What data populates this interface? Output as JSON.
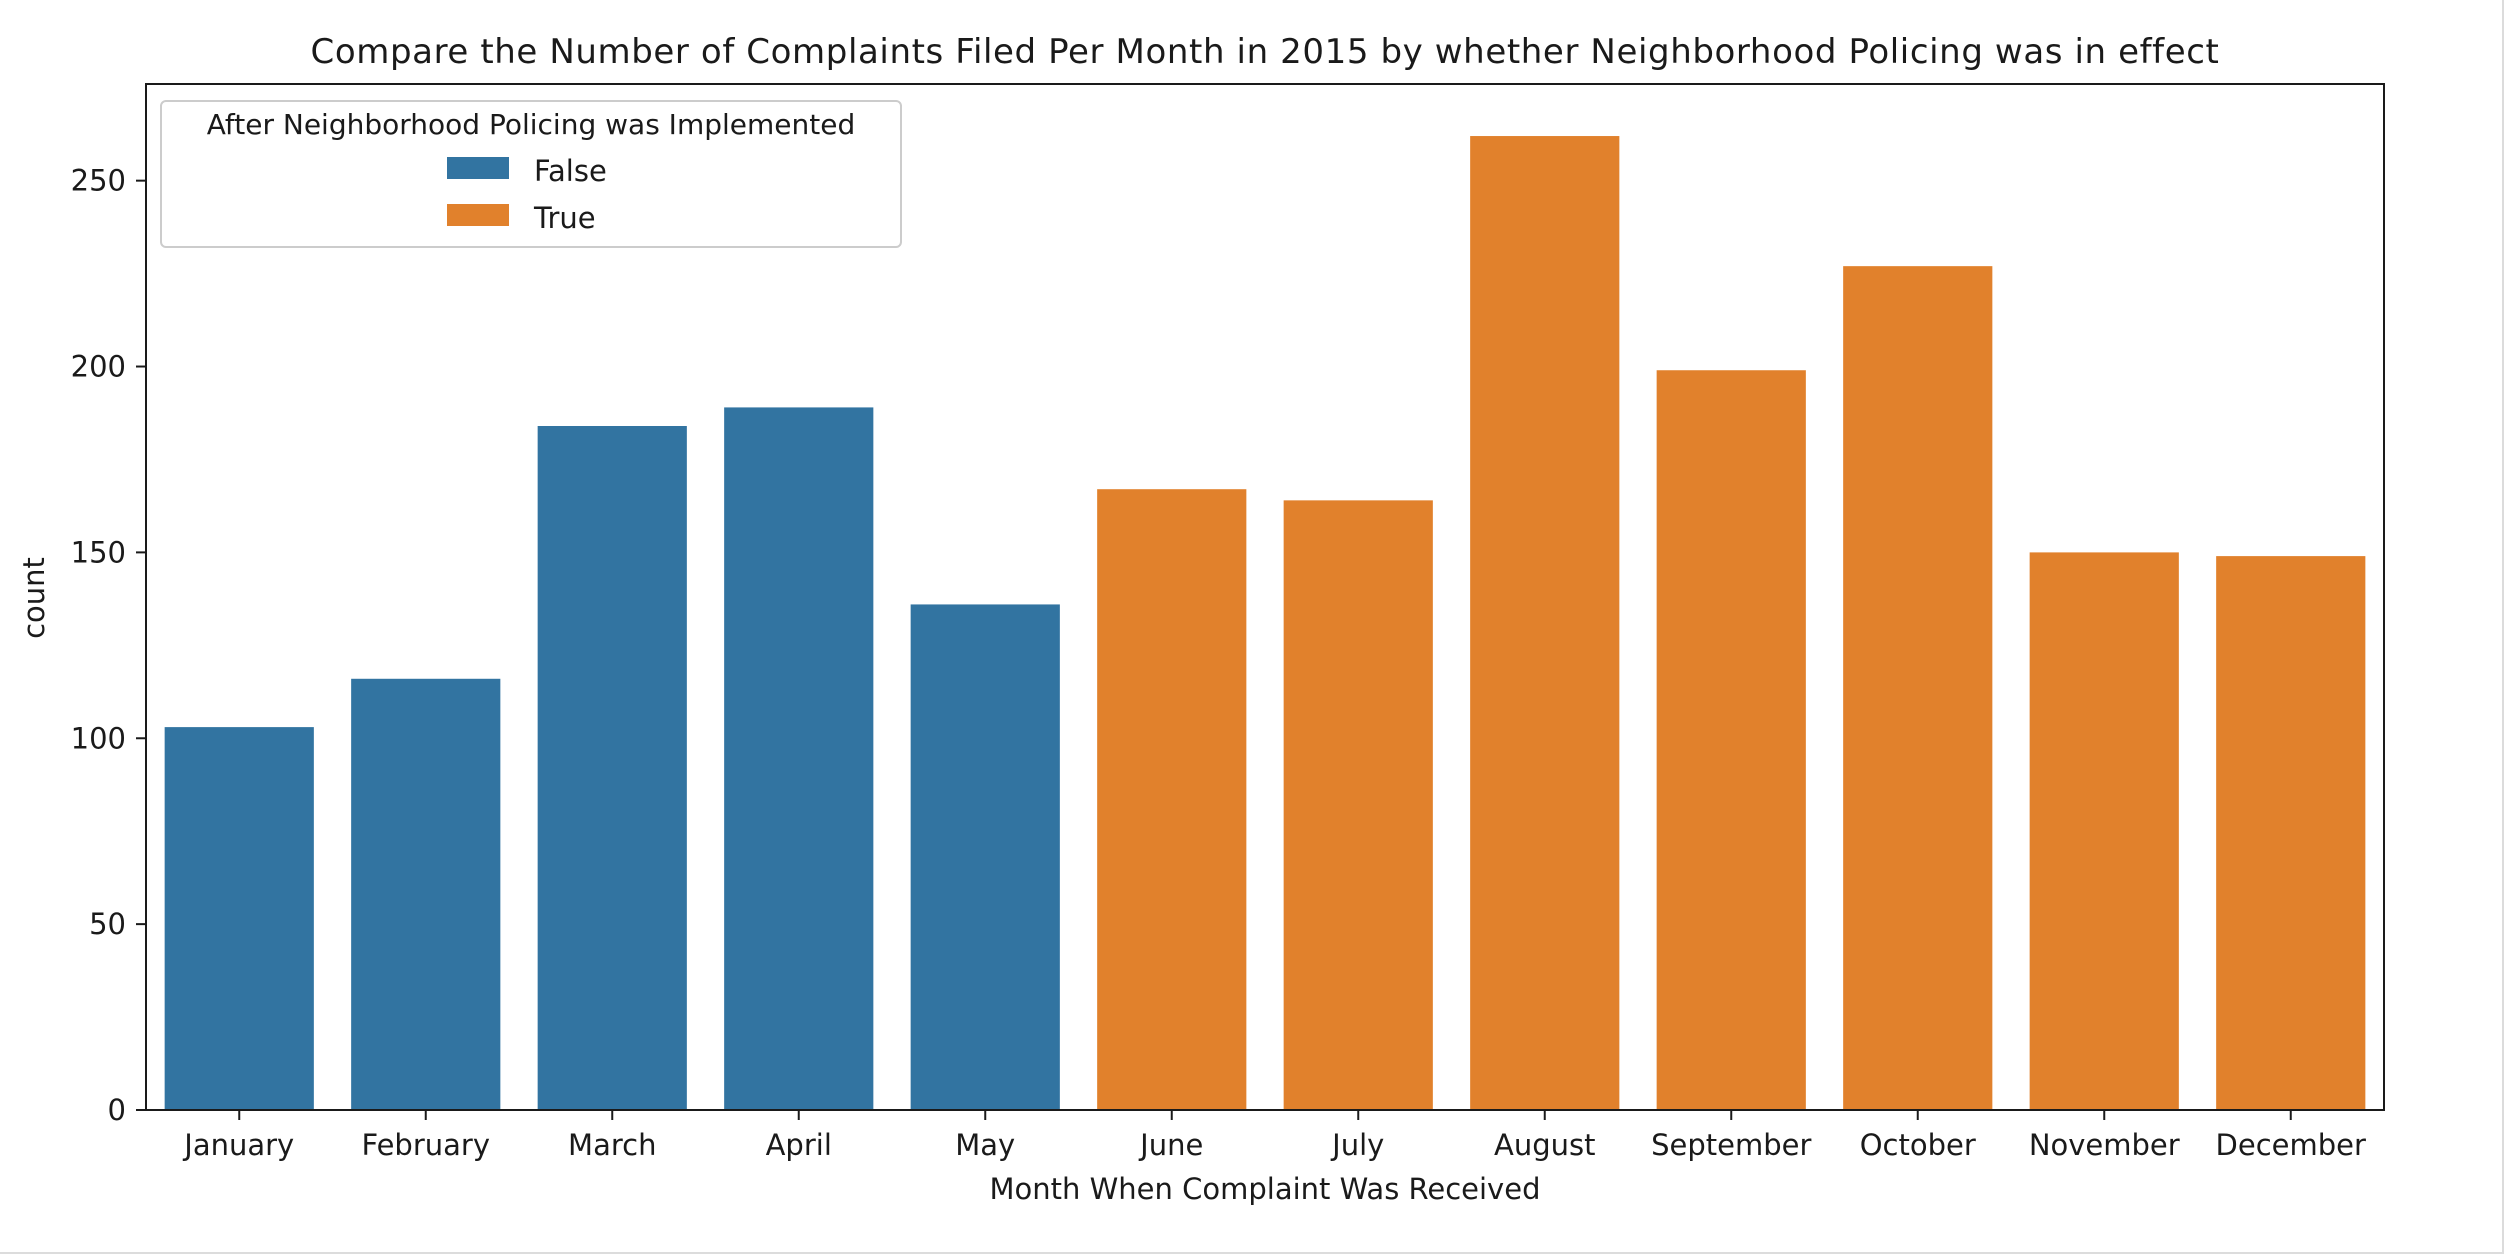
{
  "chart_data": {
    "type": "bar",
    "title": "Compare the Number of Complaints Filed Per Month in 2015 by whether Neighborhood Policing was in effect",
    "xlabel": "Month When Complaint Was Received",
    "ylabel": "count",
    "categories": [
      "January",
      "February",
      "March",
      "April",
      "May",
      "June",
      "July",
      "August",
      "September",
      "October",
      "November",
      "December"
    ],
    "values": [
      103,
      116,
      184,
      189,
      136,
      167,
      164,
      262,
      199,
      227,
      150,
      149
    ],
    "hue": [
      false,
      false,
      false,
      false,
      false,
      true,
      true,
      true,
      true,
      true,
      true,
      true
    ],
    "ylim": [
      0,
      276
    ],
    "yticks": [
      0,
      50,
      100,
      150,
      200,
      250
    ],
    "grid": false,
    "legend": {
      "title": "After Neighborhood Policing was Implemented",
      "placement": "top-left",
      "entries": [
        {
          "label": "False",
          "color": "#3274a1"
        },
        {
          "label": "True",
          "color": "#e1812c"
        }
      ]
    },
    "colors": {
      "false": "#3274a1",
      "true": "#e1812c"
    }
  }
}
